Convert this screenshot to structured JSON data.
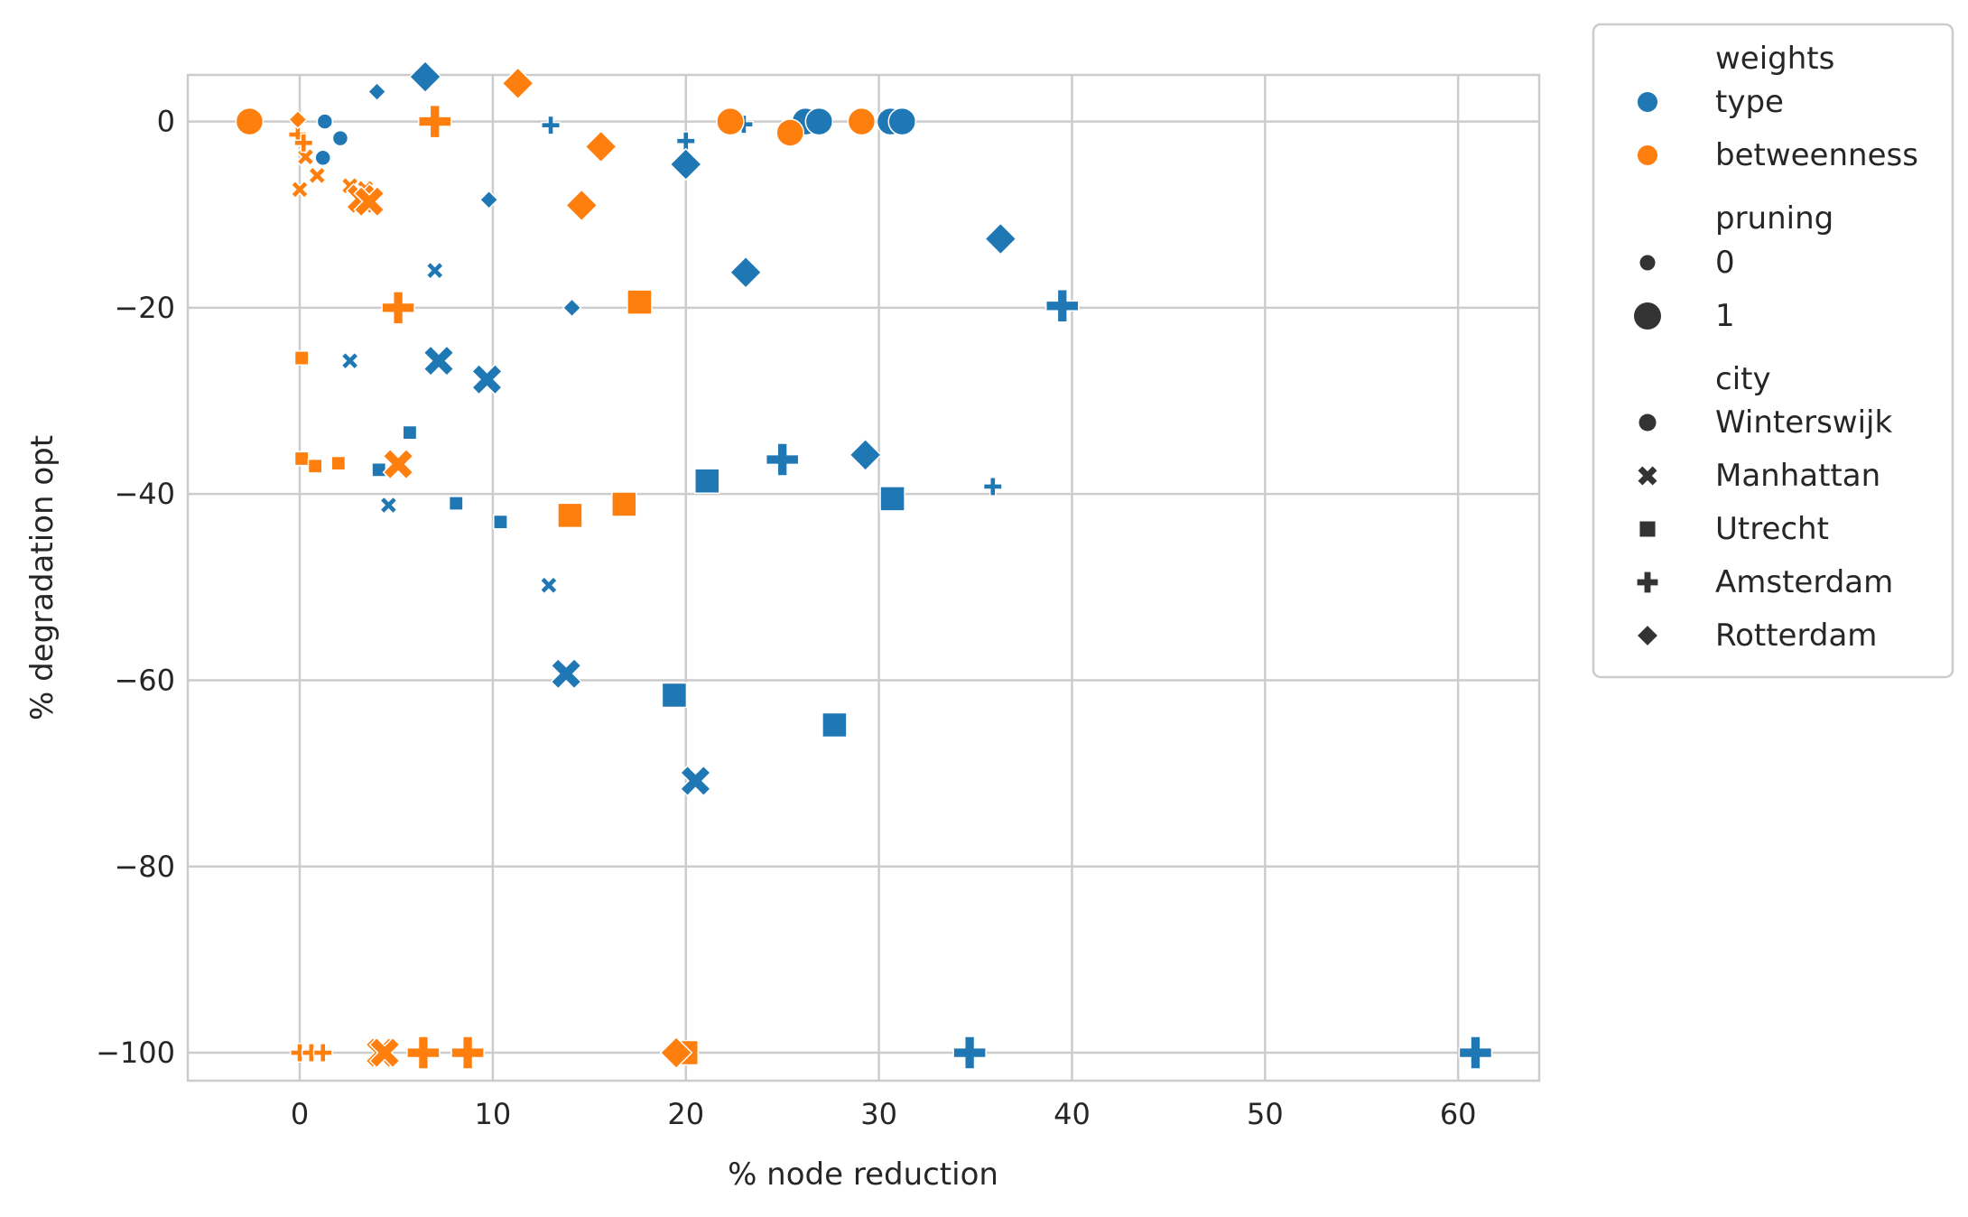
{
  "chart_data": {
    "type": "scatter",
    "xlabel": "% node reduction",
    "ylabel": "% degradation opt",
    "xlim": [
      -5.8,
      64.2
    ],
    "ylim": [
      -103.0,
      5.0
    ],
    "xticks": [
      0,
      10,
      20,
      30,
      40,
      50,
      60
    ],
    "yticks": [
      0,
      -20,
      -40,
      -60,
      -80,
      -100
    ],
    "xtick_labels": [
      "0",
      "10",
      "20",
      "30",
      "40",
      "50",
      "60"
    ],
    "ytick_labels": [
      "0",
      "−20",
      "−40",
      "−60",
      "−80",
      "−100"
    ],
    "grid": true,
    "legend_placement": "outside-right-top",
    "colors": {
      "type": "#1f77b4",
      "betweenness": "#ff7f0e",
      "legend_marker": "#333333",
      "grid": "#cccccc"
    },
    "legend": {
      "hue_title": "weights",
      "hue_entries": [
        {
          "label": "type",
          "key": "type"
        },
        {
          "label": "betweenness",
          "key": "betweenness"
        }
      ],
      "size_title": "pruning",
      "size_entries": [
        {
          "label": "0",
          "key": 0
        },
        {
          "label": "1",
          "key": 1
        }
      ],
      "style_title": "city",
      "style_entries": [
        {
          "label": "Winterswijk",
          "marker": "circle"
        },
        {
          "label": "Manhattan",
          "marker": "x"
        },
        {
          "label": "Utrecht",
          "marker": "square"
        },
        {
          "label": "Amsterdam",
          "marker": "plus"
        },
        {
          "label": "Rotterdam",
          "marker": "diamond"
        }
      ]
    },
    "series": [
      {
        "weights": "type",
        "points": [
          {
            "x": 1.3,
            "y": 0.0,
            "pruning": 0,
            "city": "Winterswijk"
          },
          {
            "x": 2.1,
            "y": -1.8,
            "pruning": 0,
            "city": "Winterswijk"
          },
          {
            "x": 1.2,
            "y": -3.9,
            "pruning": 0,
            "city": "Winterswijk"
          },
          {
            "x": 26.2,
            "y": 0.0,
            "pruning": 1,
            "city": "Winterswijk"
          },
          {
            "x": 26.9,
            "y": 0.0,
            "pruning": 1,
            "city": "Winterswijk"
          },
          {
            "x": 30.6,
            "y": 0.0,
            "pruning": 1,
            "city": "Winterswijk"
          },
          {
            "x": 31.2,
            "y": 0.0,
            "pruning": 1,
            "city": "Winterswijk"
          },
          {
            "x": 7.0,
            "y": -16.0,
            "pruning": 0,
            "city": "Manhattan"
          },
          {
            "x": 2.6,
            "y": -25.7,
            "pruning": 0,
            "city": "Manhattan"
          },
          {
            "x": 4.6,
            "y": -41.2,
            "pruning": 0,
            "city": "Manhattan"
          },
          {
            "x": 12.9,
            "y": -49.8,
            "pruning": 0,
            "city": "Manhattan"
          },
          {
            "x": 7.2,
            "y": -25.7,
            "pruning": 1,
            "city": "Manhattan"
          },
          {
            "x": 9.7,
            "y": -27.7,
            "pruning": 1,
            "city": "Manhattan"
          },
          {
            "x": 13.8,
            "y": -59.3,
            "pruning": 1,
            "city": "Manhattan"
          },
          {
            "x": 20.5,
            "y": -70.8,
            "pruning": 1,
            "city": "Manhattan"
          },
          {
            "x": 5.7,
            "y": -33.4,
            "pruning": 0,
            "city": "Utrecht"
          },
          {
            "x": 4.1,
            "y": -37.4,
            "pruning": 0,
            "city": "Utrecht"
          },
          {
            "x": 8.1,
            "y": -41.0,
            "pruning": 0,
            "city": "Utrecht"
          },
          {
            "x": 10.4,
            "y": -43.0,
            "pruning": 0,
            "city": "Utrecht"
          },
          {
            "x": 21.1,
            "y": -38.6,
            "pruning": 1,
            "city": "Utrecht"
          },
          {
            "x": 30.7,
            "y": -40.5,
            "pruning": 1,
            "city": "Utrecht"
          },
          {
            "x": 19.4,
            "y": -61.6,
            "pruning": 1,
            "city": "Utrecht"
          },
          {
            "x": 27.7,
            "y": -64.8,
            "pruning": 1,
            "city": "Utrecht"
          },
          {
            "x": 13.0,
            "y": -0.4,
            "pruning": 0,
            "city": "Amsterdam"
          },
          {
            "x": 20.0,
            "y": -2.1,
            "pruning": 0,
            "city": "Amsterdam"
          },
          {
            "x": 23.0,
            "y": -0.3,
            "pruning": 0,
            "city": "Amsterdam"
          },
          {
            "x": 35.9,
            "y": -39.2,
            "pruning": 0,
            "city": "Amsterdam"
          },
          {
            "x": 39.5,
            "y": -19.8,
            "pruning": 1,
            "city": "Amsterdam"
          },
          {
            "x": 25.0,
            "y": -36.3,
            "pruning": 1,
            "city": "Amsterdam"
          },
          {
            "x": 34.7,
            "y": -100.0,
            "pruning": 1,
            "city": "Amsterdam"
          },
          {
            "x": 60.9,
            "y": -100.0,
            "pruning": 1,
            "city": "Amsterdam"
          },
          {
            "x": 4.0,
            "y": 3.2,
            "pruning": 0,
            "city": "Rotterdam"
          },
          {
            "x": 9.8,
            "y": -8.4,
            "pruning": 0,
            "city": "Rotterdam"
          },
          {
            "x": 14.1,
            "y": -20.0,
            "pruning": 0,
            "city": "Rotterdam"
          },
          {
            "x": 6.5,
            "y": 4.8,
            "pruning": 1,
            "city": "Rotterdam"
          },
          {
            "x": 20.0,
            "y": -4.6,
            "pruning": 1,
            "city": "Rotterdam"
          },
          {
            "x": 23.1,
            "y": -16.2,
            "pruning": 1,
            "city": "Rotterdam"
          },
          {
            "x": 36.3,
            "y": -12.6,
            "pruning": 1,
            "city": "Rotterdam"
          },
          {
            "x": 29.3,
            "y": -35.8,
            "pruning": 1,
            "city": "Rotterdam"
          }
        ]
      },
      {
        "weights": "betweenness",
        "points": [
          {
            "x": -2.6,
            "y": 0.0,
            "pruning": 1,
            "city": "Winterswijk"
          },
          {
            "x": 22.3,
            "y": 0.0,
            "pruning": 1,
            "city": "Winterswijk"
          },
          {
            "x": 25.4,
            "y": -1.2,
            "pruning": 1,
            "city": "Winterswijk"
          },
          {
            "x": 29.1,
            "y": 0.0,
            "pruning": 1,
            "city": "Winterswijk"
          },
          {
            "x": 0.0,
            "y": -7.3,
            "pruning": 0,
            "city": "Manhattan"
          },
          {
            "x": 0.3,
            "y": -3.8,
            "pruning": 0,
            "city": "Manhattan"
          },
          {
            "x": 0.9,
            "y": -5.8,
            "pruning": 0,
            "city": "Manhattan"
          },
          {
            "x": 2.6,
            "y": -6.9,
            "pruning": 0,
            "city": "Manhattan"
          },
          {
            "x": 3.4,
            "y": -7.2,
            "pruning": 0,
            "city": "Manhattan"
          },
          {
            "x": 3.2,
            "y": -8.3,
            "pruning": 1,
            "city": "Manhattan"
          },
          {
            "x": 3.6,
            "y": -8.6,
            "pruning": 1,
            "city": "Manhattan"
          },
          {
            "x": 5.1,
            "y": -36.8,
            "pruning": 1,
            "city": "Manhattan"
          },
          {
            "x": 4.2,
            "y": -100.0,
            "pruning": 1,
            "city": "Manhattan"
          },
          {
            "x": 4.4,
            "y": -100.0,
            "pruning": 1,
            "city": "Manhattan"
          },
          {
            "x": 0.1,
            "y": -25.4,
            "pruning": 0,
            "city": "Utrecht"
          },
          {
            "x": 0.1,
            "y": -36.2,
            "pruning": 0,
            "city": "Utrecht"
          },
          {
            "x": 0.8,
            "y": -37.0,
            "pruning": 0,
            "city": "Utrecht"
          },
          {
            "x": 2.0,
            "y": -36.7,
            "pruning": 0,
            "city": "Utrecht"
          },
          {
            "x": 17.6,
            "y": -19.4,
            "pruning": 1,
            "city": "Utrecht"
          },
          {
            "x": 14.0,
            "y": -42.3,
            "pruning": 1,
            "city": "Utrecht"
          },
          {
            "x": 16.8,
            "y": -41.1,
            "pruning": 1,
            "city": "Utrecht"
          },
          {
            "x": 20.0,
            "y": -100.0,
            "pruning": 1,
            "city": "Utrecht"
          },
          {
            "x": -0.1,
            "y": -1.4,
            "pruning": 0,
            "city": "Amsterdam"
          },
          {
            "x": 0.2,
            "y": -2.3,
            "pruning": 0,
            "city": "Amsterdam"
          },
          {
            "x": 0.0,
            "y": -100.0,
            "pruning": 0,
            "city": "Amsterdam"
          },
          {
            "x": 0.6,
            "y": -100.0,
            "pruning": 0,
            "city": "Amsterdam"
          },
          {
            "x": 1.2,
            "y": -100.0,
            "pruning": 0,
            "city": "Amsterdam"
          },
          {
            "x": 7.0,
            "y": 0.0,
            "pruning": 1,
            "city": "Amsterdam"
          },
          {
            "x": 5.1,
            "y": -20.0,
            "pruning": 1,
            "city": "Amsterdam"
          },
          {
            "x": 6.4,
            "y": -100.0,
            "pruning": 1,
            "city": "Amsterdam"
          },
          {
            "x": 8.7,
            "y": -100.0,
            "pruning": 1,
            "city": "Amsterdam"
          },
          {
            "x": -0.1,
            "y": 0.2,
            "pruning": 0,
            "city": "Rotterdam"
          },
          {
            "x": 11.3,
            "y": 4.1,
            "pruning": 1,
            "city": "Rotterdam"
          },
          {
            "x": 15.6,
            "y": -2.7,
            "pruning": 1,
            "city": "Rotterdam"
          },
          {
            "x": 14.6,
            "y": -9.0,
            "pruning": 1,
            "city": "Rotterdam"
          },
          {
            "x": 19.5,
            "y": -100.0,
            "pruning": 1,
            "city": "Rotterdam"
          }
        ]
      }
    ]
  }
}
